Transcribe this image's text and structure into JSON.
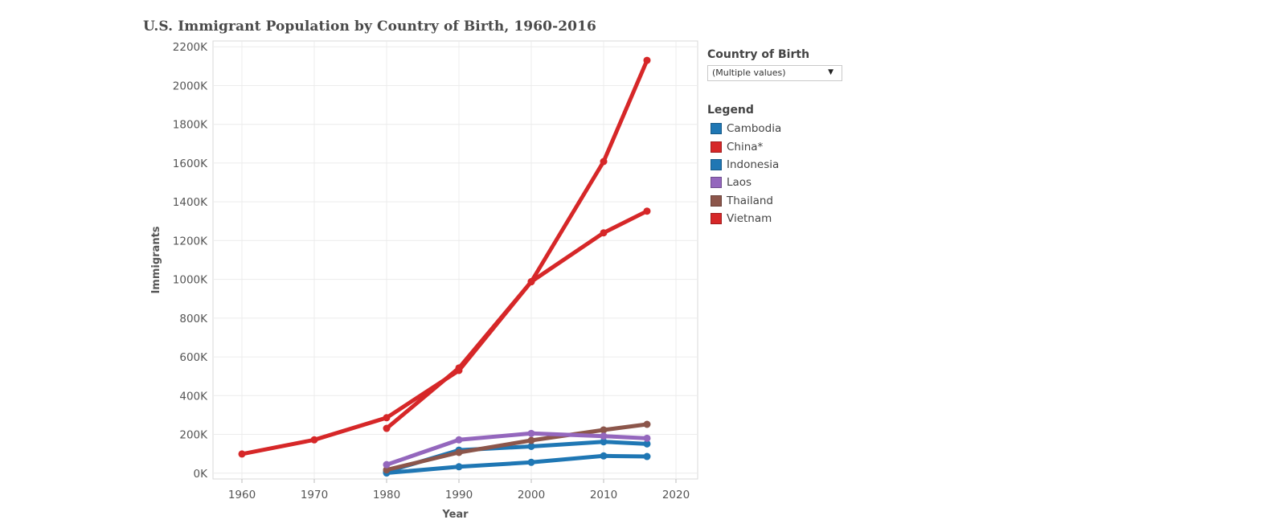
{
  "title": "U.S. Immigrant Population by Country of Birth, 1960-2016",
  "filter": {
    "label": "Country of Birth",
    "selected": "(Multiple values)",
    "caret_icon": "chevron-down-icon"
  },
  "legend": {
    "title": "Legend",
    "items": [
      {
        "label": "Cambodia",
        "color": "#1f77b4"
      },
      {
        "label": "China*",
        "color": "#d62728"
      },
      {
        "label": "Indonesia",
        "color": "#1f77b4"
      },
      {
        "label": "Laos",
        "color": "#9467bd"
      },
      {
        "label": "Thailand",
        "color": "#8c564b"
      },
      {
        "label": "Vietnam",
        "color": "#d62728"
      }
    ]
  },
  "chart_data": {
    "type": "line",
    "title": "U.S. Immigrant Population by Country of Birth, 1960-2016",
    "xlabel": "Year",
    "ylabel": "Immigrants",
    "xlim": [
      1956,
      2023
    ],
    "ylim": [
      -30,
      2230
    ],
    "xticks": [
      1960,
      1970,
      1980,
      1990,
      2000,
      2010,
      2020
    ],
    "yticks": [
      0,
      200,
      400,
      600,
      800,
      1000,
      1200,
      1400,
      1600,
      1800,
      2000,
      2200
    ],
    "ytick_labels": [
      "0K",
      "200K",
      "400K",
      "600K",
      "800K",
      "1000K",
      "1200K",
      "1400K",
      "1600K",
      "1800K",
      "2000K",
      "2200K"
    ],
    "grid": true,
    "series": [
      {
        "name": "China*",
        "color": "#d62728",
        "x": [
          1960,
          1970,
          1980,
          1990,
          2000,
          2010,
          2016
        ],
        "y": [
          99,
          172,
          286,
          530,
          988,
          1608,
          2130
        ]
      },
      {
        "name": "Vietnam",
        "color": "#d62728",
        "x": [
          1980,
          1990,
          2000,
          2010,
          2016
        ],
        "y": [
          231,
          543,
          988,
          1240,
          1352
        ]
      },
      {
        "name": "Thailand",
        "color": "#8c564b",
        "x": [
          1980,
          1990,
          2000,
          2010,
          2016
        ],
        "y": [
          17,
          107,
          169,
          223,
          252
        ]
      },
      {
        "name": "Laos",
        "color": "#9467bd",
        "x": [
          1980,
          1990,
          2000,
          2010,
          2016
        ],
        "y": [
          44,
          172,
          205,
          191,
          180
        ]
      },
      {
        "name": "Cambodia",
        "color": "#1f77b4",
        "x": [
          1980,
          1990,
          2000,
          2010,
          2016
        ],
        "y": [
          7,
          119,
          138,
          162,
          151
        ]
      },
      {
        "name": "Indonesia",
        "color": "#1f77b4",
        "x": [
          1980,
          1990,
          2000,
          2010,
          2016
        ],
        "y": [
          1,
          33,
          56,
          89,
          86
        ]
      }
    ]
  }
}
